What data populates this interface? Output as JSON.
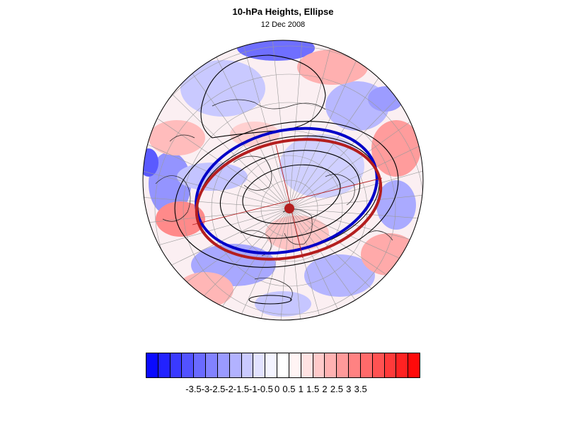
{
  "title": "10-hPa Heights, Ellipse",
  "subtitle": "12 Dec 2008",
  "colorbar": {
    "tick_labels": [
      "-3.5",
      "-3",
      "-2.5",
      "-2",
      "-1.5",
      "-1",
      "-0.5",
      "0",
      "0.5",
      "1",
      "1.5",
      "2",
      "2.5",
      "3",
      "3.5"
    ],
    "colors": [
      "#0a0aff",
      "#2222ff",
      "#3a3aff",
      "#5252ff",
      "#6a6aff",
      "#8282ff",
      "#9a9aff",
      "#b2b2ff",
      "#cacaff",
      "#e2e2ff",
      "#f4f4ff",
      "#ffffff",
      "#fff4f4",
      "#ffe2e2",
      "#ffcaca",
      "#ffb2b2",
      "#ff9a9a",
      "#ff8282",
      "#ff6a6a",
      "#ff5252",
      "#ff3a3a",
      "#ff2222",
      "#ff0a0a"
    ]
  },
  "map": {
    "projection": "polar stereographic, north pole",
    "anomaly_field": "shaded",
    "height_contours": "black",
    "ellipse_colors": {
      "blue": "#0000c8",
      "red": "#b41e1e"
    }
  }
}
